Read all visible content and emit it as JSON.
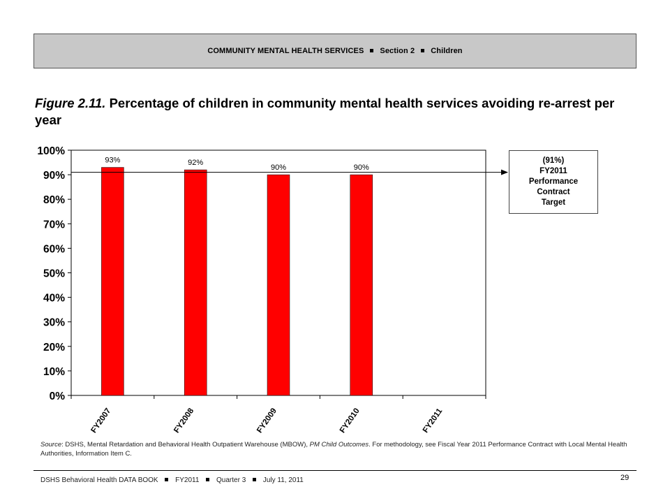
{
  "header": {
    "parts": [
      "COMMUNITY MENTAL HEALTH SERVICES",
      "Section 2",
      "Children"
    ]
  },
  "figure": {
    "number": "Figure 2.11.",
    "title": "Percentage of children in community mental health services avoiding re-arrest per year"
  },
  "target_box": {
    "lines": [
      "(91%)",
      "FY2011",
      "Performance",
      "Contract",
      "Target"
    ]
  },
  "chart_data": {
    "type": "bar",
    "categories": [
      "FY2007",
      "FY2008",
      "FY2009",
      "FY2010",
      "FY2011"
    ],
    "values": [
      93,
      92,
      90,
      90,
      null
    ],
    "data_labels": [
      "93%",
      "92%",
      "90%",
      "90%",
      ""
    ],
    "ylim": [
      0,
      100
    ],
    "yticks": [
      0,
      10,
      20,
      30,
      40,
      50,
      60,
      70,
      80,
      90,
      100
    ],
    "ytick_labels": [
      "0%",
      "10%",
      "20%",
      "30%",
      "40%",
      "50%",
      "60%",
      "70%",
      "80%",
      "90%",
      "100%"
    ],
    "target_line": 91,
    "bar_color": "#ff0000",
    "grid": false,
    "title": "",
    "xlabel": "",
    "ylabel": ""
  },
  "source": {
    "label": "Source",
    "text1": ": DSHS, Mental Retardation and Behavioral Health Outpatient Warehouse (MBOW), ",
    "italic": "PM Child Outcomes",
    "text2": ". For methodology, see Fiscal Year 2011 Performance Contract with Local Mental Health Authorities, Information Item C."
  },
  "footer": {
    "parts": [
      "DSHS Behavioral Health DATA BOOK",
      "FY2011",
      "Quarter 3",
      "July 11, 2011"
    ],
    "page_number": "29"
  }
}
